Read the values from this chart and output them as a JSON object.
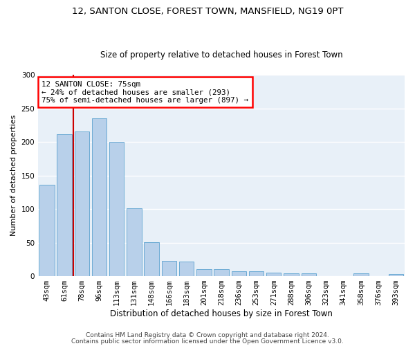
{
  "title_line1": "12, SANTON CLOSE, FOREST TOWN, MANSFIELD, NG19 0PT",
  "title_line2": "Size of property relative to detached houses in Forest Town",
  "xlabel": "Distribution of detached houses by size in Forest Town",
  "ylabel": "Number of detached properties",
  "footer_line1": "Contains HM Land Registry data © Crown copyright and database right 2024.",
  "footer_line2": "Contains public sector information licensed under the Open Government Licence v3.0.",
  "categories": [
    "43sqm",
    "61sqm",
    "78sqm",
    "96sqm",
    "113sqm",
    "131sqm",
    "148sqm",
    "166sqm",
    "183sqm",
    "201sqm",
    "218sqm",
    "236sqm",
    "253sqm",
    "271sqm",
    "288sqm",
    "306sqm",
    "323sqm",
    "341sqm",
    "358sqm",
    "376sqm",
    "393sqm"
  ],
  "values": [
    136,
    211,
    215,
    235,
    200,
    101,
    51,
    23,
    22,
    10,
    10,
    7,
    7,
    5,
    4,
    4,
    0,
    0,
    4,
    0,
    3
  ],
  "bar_color": "#b8d0ea",
  "bar_edge_color": "#6aaad4",
  "bg_color": "#e8f0f8",
  "grid_color": "#ffffff",
  "vline_color": "#cc0000",
  "vline_x": 1.5,
  "annotation_text": "12 SANTON CLOSE: 75sqm\n← 24% of detached houses are smaller (293)\n75% of semi-detached houses are larger (897) →",
  "ylim": [
    0,
    300
  ],
  "yticks": [
    0,
    50,
    100,
    150,
    200,
    250,
    300
  ],
  "title1_fontsize": 9.5,
  "title2_fontsize": 8.5,
  "xlabel_fontsize": 8.5,
  "ylabel_fontsize": 8.0,
  "tick_fontsize": 7.5,
  "footer_fontsize": 6.5
}
